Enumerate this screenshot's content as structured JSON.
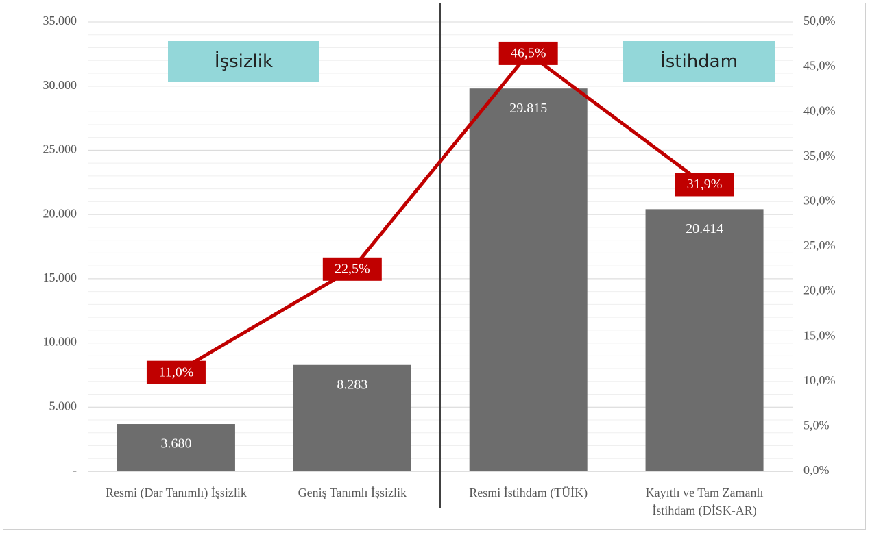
{
  "chart_data": {
    "type": "bar",
    "categories": [
      "Resmi (Dar Tanımlı) İşsizlik",
      "Geniş Tanımlı İşsizlik",
      "Resmi İstihdam (TÜİK)",
      "Kayıtlı ve Tam Zamanlı İstihdam (DİSK-AR)"
    ],
    "series": [
      {
        "type": "bar",
        "color": "#6d6d6d",
        "values": [
          3680,
          8283,
          29815,
          20414
        ],
        "value_labels": [
          "3.680",
          "8.283",
          "29.815",
          "20.414"
        ]
      },
      {
        "type": "line",
        "axis": "y2",
        "color": "#c00000",
        "values": [
          11.0,
          22.5,
          46.5,
          31.9
        ],
        "value_labels": [
          "11,0%",
          "22,5%",
          "46,5%",
          "31,9%"
        ]
      }
    ],
    "annotations": [
      "İşsizlik",
      "İstihdam"
    ],
    "ylim": [
      0,
      35000
    ],
    "yticks": [
      {
        "value": 0,
        "label": "-"
      },
      {
        "value": 5000,
        "label": "5.000"
      },
      {
        "value": 10000,
        "label": "10.000"
      },
      {
        "value": 15000,
        "label": "15.000"
      },
      {
        "value": 20000,
        "label": "20.000"
      },
      {
        "value": 25000,
        "label": "25.000"
      },
      {
        "value": 30000,
        "label": "30.000"
      },
      {
        "value": 35000,
        "label": "35.000"
      }
    ],
    "y2lim": [
      0,
      50
    ],
    "y2ticks": [
      {
        "value": 0,
        "label": "0,0%"
      },
      {
        "value": 5,
        "label": "5,0%"
      },
      {
        "value": 10,
        "label": "10,0%"
      },
      {
        "value": 15,
        "label": "15,0%"
      },
      {
        "value": 20,
        "label": "20,0%"
      },
      {
        "value": 25,
        "label": "25,0%"
      },
      {
        "value": 30,
        "label": "30,0%"
      },
      {
        "value": 35,
        "label": "35,0%"
      },
      {
        "value": 40,
        "label": "40,0%"
      },
      {
        "value": 45,
        "label": "45,0%"
      },
      {
        "value": 50,
        "label": "50,0%"
      }
    ],
    "grid": true,
    "minor_grid_step": 1000
  }
}
